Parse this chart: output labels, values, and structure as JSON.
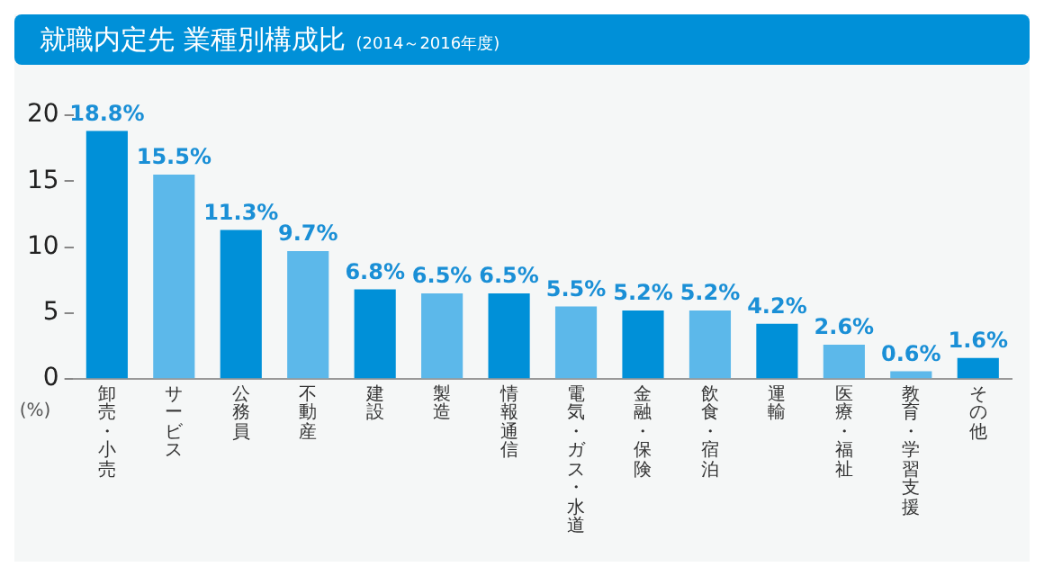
{
  "chart_data": {
    "type": "bar",
    "title": "就職内定先 業種別構成比",
    "subtitle": "(2014～2016年度)",
    "ylabel": "(%)",
    "categories": [
      "卸売・小売",
      "サービス",
      "公務員",
      "不動産",
      "建設",
      "製造",
      "情報通信",
      "電気・ガス・水道",
      "金融・保険",
      "飲食・宿泊",
      "運輸",
      "医療・福祉",
      "教育・学習支援",
      "その他"
    ],
    "values": [
      18.8,
      15.5,
      11.3,
      9.7,
      6.8,
      6.5,
      6.5,
      5.5,
      5.2,
      5.2,
      4.2,
      2.6,
      0.6,
      1.6
    ],
    "colors": [
      "#0090d8",
      "#5cb8ea",
      "#0090d8",
      "#5cb8ea",
      "#0090d8",
      "#5cb8ea",
      "#0090d8",
      "#5cb8ea",
      "#0090d8",
      "#5cb8ea",
      "#0090d8",
      "#5cb8ea",
      "#5cb8ea",
      "#0090d8"
    ],
    "value_labels": [
      "18.8%",
      "15.5%",
      "11.3%",
      "9.7%",
      "6.8%",
      "6.5%",
      "6.5%",
      "5.5%",
      "5.2%",
      "5.2%",
      "4.2%",
      "2.6%",
      "0.6%",
      "1.6%"
    ],
    "ylim": [
      0,
      20
    ],
    "yticks": [
      0,
      5,
      10,
      15,
      20
    ],
    "grid": false,
    "legend": false
  }
}
